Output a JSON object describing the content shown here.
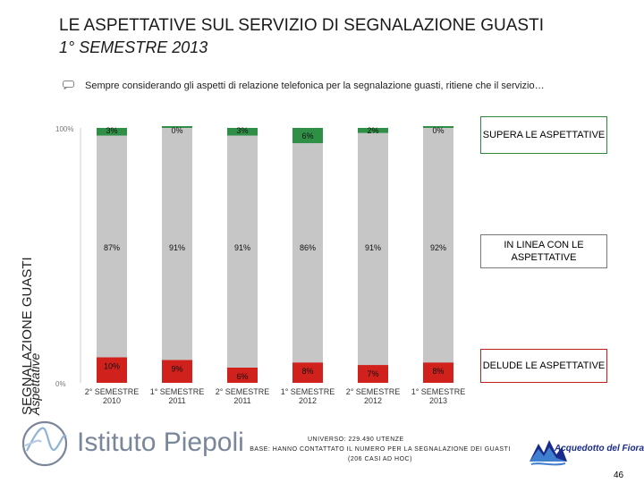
{
  "header": {
    "title_line1": "LE ASPETTATIVE SUL SERVIZIO DI SEGNALAZIONE GUASTI",
    "title_line2": "1° SEMESTRE 2013"
  },
  "question": "Sempre considerando gli aspetti di relazione telefonica per la segnalazione guasti, ritiene che il servizio…",
  "side_label": {
    "main": "SEGNALAZIONE GUASTI",
    "sub": "Aspettative"
  },
  "chart_data": {
    "type": "bar",
    "stacked": true,
    "categories": [
      [
        "2° SEMESTRE",
        "2010"
      ],
      [
        "1° SEMESTRE",
        "2011"
      ],
      [
        "2° SEMESTRE",
        "2011"
      ],
      [
        "1° SEMESTRE",
        "2012"
      ],
      [
        "2° SEMESTRE",
        "2012"
      ],
      [
        "1° SEMESTRE",
        "2013"
      ]
    ],
    "series": [
      {
        "name": "DELUDE LE ASPETTATIVE",
        "color": "#d0211c",
        "values": [
          10,
          9,
          6,
          8,
          7,
          8
        ]
      },
      {
        "name": "IN LINEA CON LE ASPETTATIVE",
        "color": "#c6c6c6",
        "values": [
          87,
          91,
          91,
          86,
          91,
          92
        ]
      },
      {
        "name": "SUPERA LE ASPETTATIVE",
        "color": "#2f8f46",
        "values": [
          3,
          0,
          3,
          6,
          2,
          0
        ]
      }
    ],
    "ylim": [
      0,
      100
    ],
    "y_ticks": [
      "0%",
      "100%"
    ],
    "xlabel": "",
    "ylabel": "",
    "title": ""
  },
  "legend": {
    "supera": "SUPERA LE ASPETTATIVE",
    "inline": "IN LINEA CON LE ASPETTATIVE",
    "delude": "DELUDE LE ASPETTATIVE"
  },
  "footer": {
    "logo_text": "Istituto Piepoli",
    "universe": "UNIVERSO: 229.490 UTENZE",
    "base": "BASE: HANNO CONTATTATO IL NUMERO PER LA SEGNALAZIONE DEI GUASTI (206 CASI AD HOC)",
    "partner_logo": "Acquedotto del Fiora",
    "page_number": "46"
  },
  "colors": {
    "red": "#d0211c",
    "grey": "#c6c6c6",
    "green": "#2f8f46",
    "logo_blue": "#1a2a8a"
  }
}
